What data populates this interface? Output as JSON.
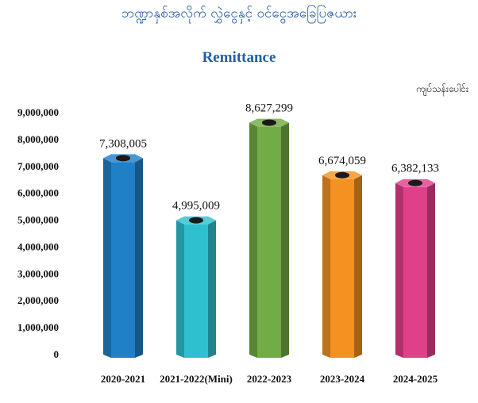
{
  "header": {
    "title": "ဘဏ္ဍာနှစ်အလိုက် လွှဲငွေနှင့် ဝင်ငွေအခြေပြဇယား",
    "unit": "ကျပ်သန်းပေါင်း"
  },
  "chart_data": {
    "type": "bar",
    "title": "Remittance",
    "xlabel": "",
    "ylabel": "",
    "ylim": [
      0,
      9000000
    ],
    "yticks": [
      0,
      1000000,
      2000000,
      3000000,
      4000000,
      5000000,
      6000000,
      7000000,
      8000000,
      9000000
    ],
    "ytick_labels": [
      "0",
      "1,000,000",
      "2,000,000",
      "3,000,000",
      "4,000,000",
      "5,000,000",
      "6,000,000",
      "7,000,000",
      "8,000,000",
      "9,000,000"
    ],
    "categories": [
      "2020-2021",
      "2021-2022(Mini)",
      "2022-2023",
      "2023-2024",
      "2024-2025"
    ],
    "values": [
      7308005,
      4995009,
      8627299,
      6674059,
      6382133
    ],
    "value_labels": [
      "7,308,005",
      "4,995,009",
      "8,627,299",
      "6,674,059",
      "6,382,133"
    ],
    "colors": [
      "#1f80c8",
      "#2fc0cf",
      "#72ac45",
      "#f39220",
      "#e0408a"
    ],
    "grid": false,
    "legend": "none"
  }
}
